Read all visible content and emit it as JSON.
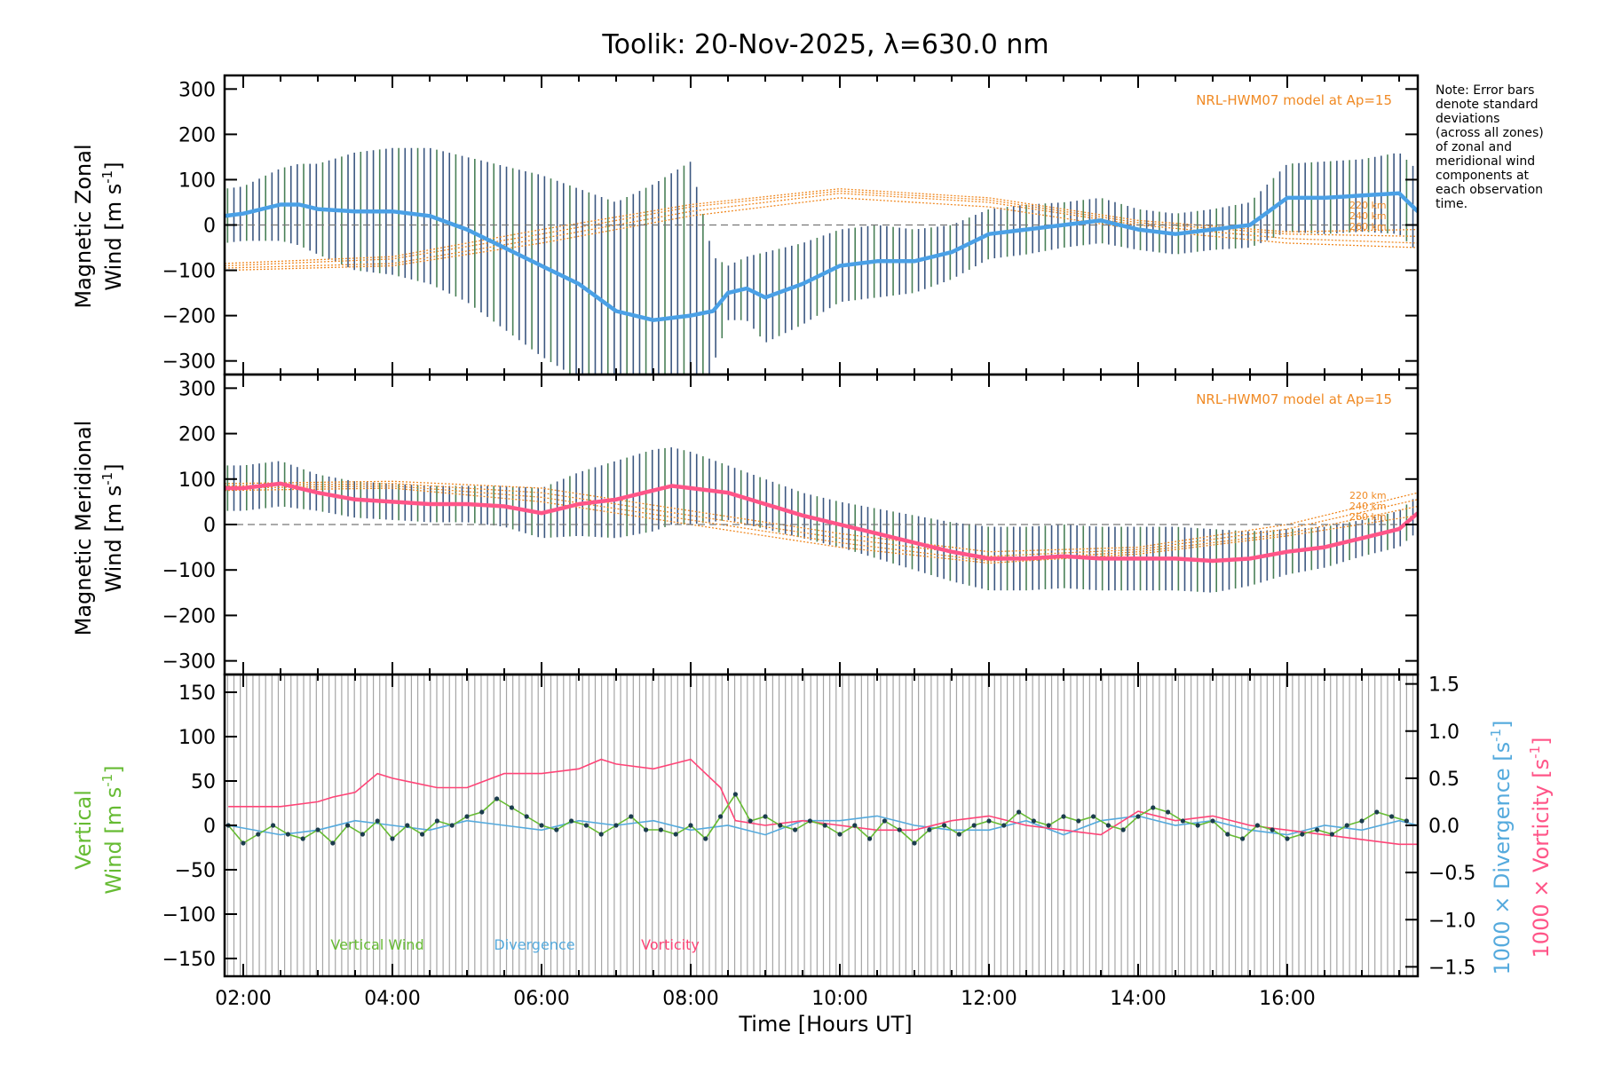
{
  "title": "Toolik: 20-Nov-2025, λ=630.0 nm",
  "note": [
    "Note: Error bars",
    "denote standard",
    "deviations",
    "(across all zones)",
    "of zonal and",
    "meridional wind",
    "components at",
    "each observation",
    "time."
  ],
  "x_axis": {
    "label": "Time [Hours UT]",
    "range_hours": [
      1.75,
      17.75
    ],
    "ticks": [
      {
        "value": 2,
        "label": "02:00"
      },
      {
        "value": 4,
        "label": "04:00"
      },
      {
        "value": 6,
        "label": "06:00"
      },
      {
        "value": 8,
        "label": "08:00"
      },
      {
        "value": 10,
        "label": "10:00"
      },
      {
        "value": 12,
        "label": "12:00"
      },
      {
        "value": 14,
        "label": "14:00"
      },
      {
        "value": 16,
        "label": "16:00"
      }
    ]
  },
  "colors": {
    "zonal": "#4aa0e6",
    "meridional": "#ff5588",
    "vertical": "#66bb33",
    "divergence": "#55aadd",
    "vorticity": "#ff4477",
    "model": "#f08a24",
    "errorbar_dark": "#1a3a6a",
    "errorbar_grey": "#888888",
    "vertical_marker": "#1b3c4d"
  },
  "chart_data": [
    {
      "type": "line",
      "name": "zonal",
      "ylabel": "Magnetic Zonal Wind [m s-1]",
      "ylabel_line1": "Magnetic Zonal",
      "ylabel_line2": "Wind [m s",
      "ylabel_unit_exp": "-1",
      "ylabel_close": "]",
      "ylim": [
        -330,
        330
      ],
      "yticks": [
        -300,
        -200,
        -100,
        0,
        100,
        200,
        300
      ],
      "model_label": "NRL-HWM07 model at Ap=15",
      "model_altitudes": [
        "220 km",
        "240 km",
        "260 km"
      ],
      "series": [
        {
          "name": "Magnetic Zonal Wind",
          "x": [
            1.75,
            2.0,
            2.5,
            2.75,
            3.0,
            3.5,
            4.0,
            4.5,
            5.0,
            5.5,
            6.0,
            6.5,
            7.0,
            7.5,
            8.0,
            8.3,
            8.5,
            8.75,
            9.0,
            9.5,
            10.0,
            10.5,
            11.0,
            11.5,
            12.0,
            12.5,
            13.0,
            13.5,
            14.0,
            14.5,
            15.0,
            15.5,
            16.0,
            16.5,
            17.0,
            17.5,
            17.75
          ],
          "values": [
            20,
            25,
            45,
            45,
            35,
            30,
            30,
            20,
            -10,
            -50,
            -90,
            -130,
            -190,
            -210,
            -200,
            -190,
            -150,
            -140,
            -160,
            -130,
            -90,
            -80,
            -80,
            -60,
            -20,
            -10,
            0,
            10,
            -10,
            -20,
            -10,
            0,
            60,
            60,
            65,
            70,
            30
          ],
          "error": [
            60,
            60,
            80,
            90,
            100,
            130,
            140,
            150,
            160,
            180,
            200,
            210,
            240,
            300,
            340,
            120,
            60,
            70,
            100,
            90,
            80,
            80,
            70,
            60,
            55,
            55,
            50,
            50,
            45,
            45,
            45,
            50,
            75,
            80,
            80,
            90,
            90
          ]
        }
      ],
      "model_curves": [
        {
          "x": [
            1.75,
            4,
            6,
            8,
            10,
            12,
            14,
            16,
            17.75
          ],
          "values": [
            -100,
            -90,
            -40,
            20,
            60,
            40,
            -10,
            -40,
            -50
          ]
        },
        {
          "x": [
            1.75,
            4,
            6,
            8,
            10,
            12,
            14,
            16,
            17.75
          ],
          "values": [
            -95,
            -85,
            -30,
            30,
            70,
            50,
            0,
            -30,
            -40
          ]
        },
        {
          "x": [
            1.75,
            4,
            6,
            8,
            10,
            12,
            14,
            16,
            17.75
          ],
          "values": [
            -90,
            -75,
            -20,
            40,
            75,
            55,
            5,
            -20,
            -25
          ]
        },
        {
          "x": [
            1.75,
            4,
            6,
            8,
            10,
            12,
            14,
            16,
            17.75
          ],
          "values": [
            -85,
            -70,
            -10,
            45,
            80,
            60,
            10,
            -15,
            -10
          ]
        }
      ]
    },
    {
      "type": "line",
      "name": "meridional",
      "ylabel": "Magnetic Meridional Wind [m s-1]",
      "ylabel_line1": "Magnetic Meridional",
      "ylabel_line2": "Wind [m s",
      "ylabel_unit_exp": "-1",
      "ylabel_close": "]",
      "ylim": [
        -330,
        330
      ],
      "yticks": [
        -300,
        -200,
        -100,
        0,
        100,
        200,
        300
      ],
      "model_label": "NRL-HWM07 model at Ap=15",
      "model_altitudes": [
        "220 km",
        "240 km",
        "260 km"
      ],
      "series": [
        {
          "name": "Magnetic Meridional Wind",
          "x": [
            1.75,
            2.0,
            2.5,
            3.0,
            3.5,
            4.0,
            4.5,
            5.0,
            5.5,
            6.0,
            6.5,
            7.0,
            7.5,
            7.75,
            8.0,
            8.5,
            9.0,
            9.5,
            10.0,
            10.5,
            11.0,
            11.5,
            12.0,
            12.5,
            13.0,
            13.5,
            14.0,
            14.5,
            15.0,
            15.5,
            16.0,
            16.5,
            17.0,
            17.5,
            17.75
          ],
          "values": [
            80,
            80,
            90,
            70,
            55,
            50,
            45,
            45,
            40,
            25,
            45,
            55,
            75,
            85,
            80,
            70,
            45,
            20,
            0,
            -20,
            -40,
            -60,
            -75,
            -75,
            -70,
            -75,
            -75,
            -75,
            -80,
            -75,
            -60,
            -50,
            -30,
            -10,
            25
          ],
          "error": [
            50,
            50,
            50,
            40,
            40,
            40,
            40,
            40,
            45,
            55,
            70,
            85,
            90,
            85,
            80,
            60,
            55,
            50,
            50,
            55,
            60,
            65,
            70,
            70,
            70,
            70,
            70,
            70,
            70,
            60,
            50,
            45,
            40,
            40,
            40
          ]
        }
      ],
      "model_curves": [
        {
          "x": [
            1.75,
            4,
            6,
            8,
            10,
            12,
            14,
            16,
            17.75
          ],
          "values": [
            90,
            95,
            80,
            30,
            -20,
            -60,
            -50,
            0,
            70
          ]
        },
        {
          "x": [
            1.75,
            4,
            6,
            8,
            10,
            12,
            14,
            16,
            17.75
          ],
          "values": [
            85,
            90,
            70,
            20,
            -30,
            -70,
            -55,
            -10,
            55
          ]
        },
        {
          "x": [
            1.75,
            4,
            6,
            8,
            10,
            12,
            14,
            16,
            17.75
          ],
          "values": [
            80,
            85,
            60,
            10,
            -40,
            -80,
            -60,
            -20,
            40
          ]
        },
        {
          "x": [
            1.75,
            4,
            6,
            8,
            10,
            12,
            14,
            16,
            17.75
          ],
          "values": [
            75,
            80,
            50,
            0,
            -50,
            -85,
            -65,
            -25,
            20
          ]
        }
      ]
    },
    {
      "type": "line",
      "name": "vertical",
      "ylabel_line1": "Vertical",
      "ylabel_line2": "Wind [m s",
      "ylabel_unit_exp": "-1",
      "ylabel_close": "]",
      "ylim": [
        -170,
        170
      ],
      "yticks": [
        -150,
        -100,
        -50,
        0,
        50,
        100,
        150
      ],
      "y2lim": [
        -1.6,
        1.6
      ],
      "y2ticks": [
        -1.5,
        -1.0,
        -0.5,
        0.0,
        0.5,
        1.0,
        1.5
      ],
      "y2label_div": "1000 × Divergence [s",
      "y2label_vort": "1000 × Vorticity [s",
      "y2label_exp": "-1",
      "y2label_close": "]",
      "legend": [
        "Vertical Wind",
        "Divergence",
        "Vorticity"
      ],
      "series": [
        {
          "name": "Vertical Wind",
          "axis": "left",
          "x": [
            1.8,
            2.0,
            2.2,
            2.4,
            2.6,
            2.8,
            3.0,
            3.2,
            3.4,
            3.6,
            3.8,
            4.0,
            4.2,
            4.4,
            4.6,
            4.8,
            5.0,
            5.2,
            5.4,
            5.6,
            5.8,
            6.0,
            6.2,
            6.4,
            6.6,
            6.8,
            7.0,
            7.2,
            7.4,
            7.6,
            7.8,
            8.0,
            8.2,
            8.4,
            8.6,
            8.8,
            9.0,
            9.2,
            9.4,
            9.6,
            9.8,
            10.0,
            10.2,
            10.4,
            10.6,
            10.8,
            11.0,
            11.2,
            11.4,
            11.6,
            11.8,
            12.0,
            12.2,
            12.4,
            12.6,
            12.8,
            13.0,
            13.2,
            13.4,
            13.6,
            13.8,
            14.0,
            14.2,
            14.4,
            14.6,
            14.8,
            15.0,
            15.2,
            15.4,
            15.6,
            15.8,
            16.0,
            16.2,
            16.4,
            16.6,
            16.8,
            17.0,
            17.2,
            17.4,
            17.6
          ],
          "values": [
            0,
            -20,
            -10,
            0,
            -10,
            -15,
            -5,
            -20,
            0,
            -10,
            5,
            -15,
            0,
            -10,
            5,
            0,
            10,
            15,
            30,
            20,
            10,
            0,
            -5,
            5,
            0,
            -10,
            0,
            10,
            -5,
            -5,
            -10,
            0,
            -15,
            10,
            35,
            5,
            10,
            0,
            -5,
            5,
            0,
            -10,
            0,
            -15,
            5,
            -5,
            -20,
            -5,
            0,
            -10,
            0,
            5,
            0,
            15,
            5,
            0,
            10,
            5,
            10,
            0,
            -5,
            10,
            20,
            15,
            5,
            0,
            5,
            -10,
            -15,
            0,
            -5,
            -15,
            -10,
            -5,
            -10,
            0,
            5,
            15,
            10,
            5
          ]
        },
        {
          "name": "Divergence",
          "axis": "right",
          "x": [
            1.8,
            2.5,
            3.0,
            3.5,
            4.0,
            4.5,
            5.0,
            5.5,
            6.0,
            6.5,
            7.0,
            7.5,
            8.0,
            8.5,
            9.0,
            9.5,
            10.0,
            10.5,
            11.0,
            11.5,
            12.0,
            12.5,
            13.0,
            13.5,
            14.0,
            14.5,
            15.0,
            15.5,
            16.0,
            16.5,
            17.0,
            17.5,
            17.75
          ],
          "values": [
            0.0,
            -0.1,
            -0.05,
            0.05,
            0.0,
            -0.05,
            0.05,
            0.0,
            -0.05,
            0.05,
            0.0,
            0.05,
            -0.05,
            0.0,
            -0.1,
            0.05,
            0.05,
            0.1,
            0.0,
            -0.05,
            -0.05,
            0.05,
            -0.1,
            0.05,
            0.1,
            0.0,
            0.05,
            -0.05,
            -0.1,
            0.0,
            -0.05,
            0.05,
            0.0
          ]
        },
        {
          "name": "Vorticity",
          "axis": "right",
          "x": [
            1.8,
            2.5,
            3.0,
            3.2,
            3.5,
            3.8,
            4.0,
            4.3,
            4.6,
            5.0,
            5.5,
            6.0,
            6.5,
            6.8,
            7.0,
            7.5,
            8.0,
            8.2,
            8.4,
            8.6,
            9.0,
            9.5,
            10.0,
            10.5,
            11.0,
            11.5,
            12.0,
            12.5,
            13.0,
            13.5,
            14.0,
            14.5,
            15.0,
            15.5,
            16.0,
            16.5,
            17.0,
            17.5,
            17.75
          ],
          "values": [
            0.2,
            0.2,
            0.25,
            0.3,
            0.35,
            0.55,
            0.5,
            0.45,
            0.4,
            0.4,
            0.55,
            0.55,
            0.6,
            0.7,
            0.65,
            0.6,
            0.7,
            0.55,
            0.4,
            0.05,
            0.0,
            0.05,
            0.0,
            -0.05,
            -0.05,
            0.05,
            0.1,
            0.0,
            -0.05,
            -0.1,
            0.15,
            0.05,
            0.1,
            0.0,
            -0.05,
            -0.1,
            -0.15,
            -0.2,
            -0.2
          ]
        }
      ]
    }
  ]
}
